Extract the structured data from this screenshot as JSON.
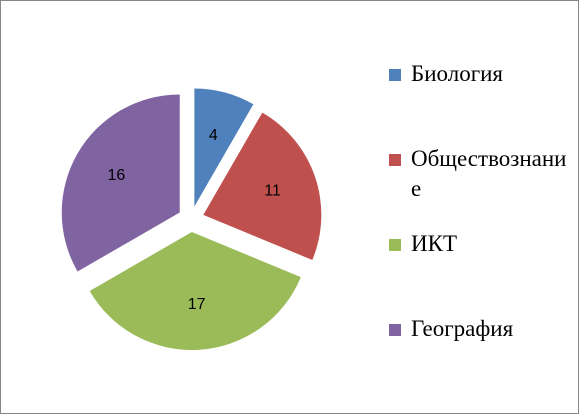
{
  "chart_data": {
    "type": "pie",
    "categories": [
      "Биология",
      "Обществознание",
      "ИКТ",
      "География"
    ],
    "values": [
      4,
      11,
      17,
      16
    ],
    "colors": [
      "#4f81bd",
      "#c0504d",
      "#9bbb59",
      "#8064a2"
    ],
    "legend": "right"
  }
}
